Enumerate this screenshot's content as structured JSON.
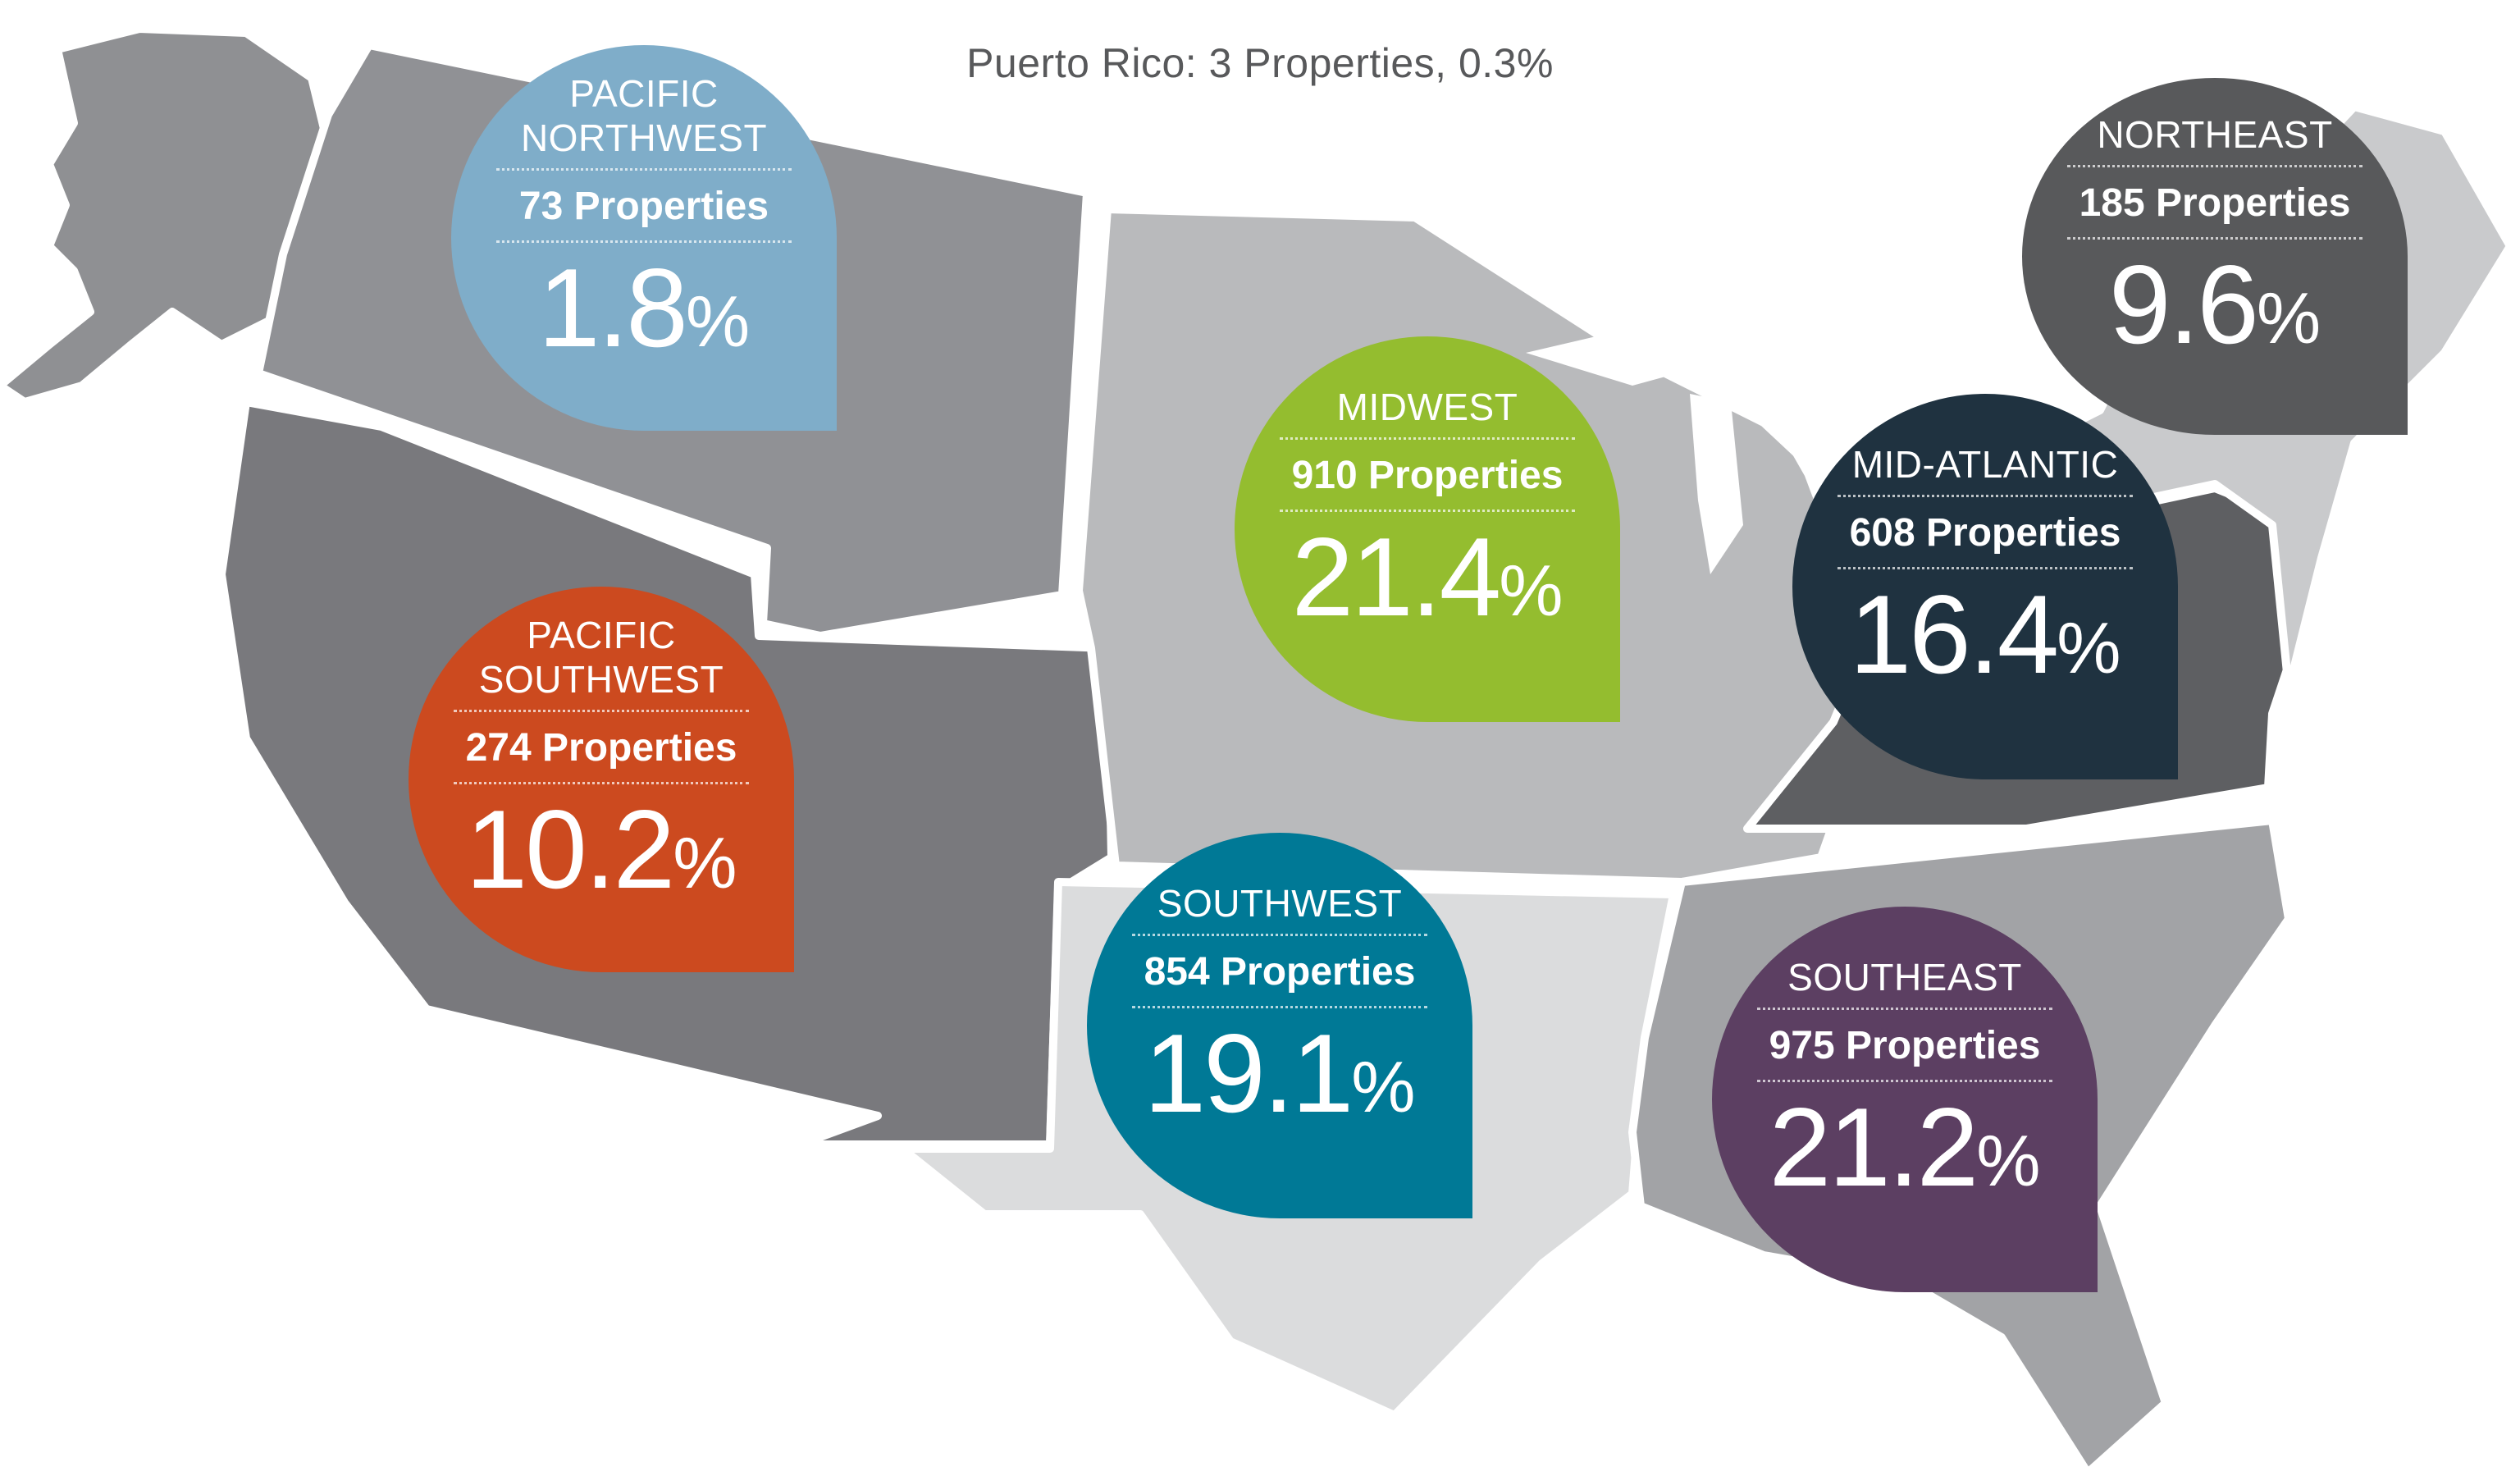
{
  "caption": "Puerto Rico: 3 Properties, 0.3%",
  "regions": [
    {
      "id": "pacific-northwest",
      "name": "PACIFIC NORTHWEST",
      "properties": "73 Properties",
      "percent": "1.8",
      "percent_sign": "%",
      "color": "#7fadc9"
    },
    {
      "id": "pacific-southwest",
      "name": "PACIFIC SOUTHWEST",
      "properties": "274 Properties",
      "percent": "10.2",
      "percent_sign": "%",
      "color": "#cc4a1f"
    },
    {
      "id": "midwest",
      "name": "MIDWEST",
      "properties": "910 Properties",
      "percent": "21.4",
      "percent_sign": "%",
      "color": "#94bd2f"
    },
    {
      "id": "southwest",
      "name": "SOUTHWEST",
      "properties": "854 Properties",
      "percent": "19.1",
      "percent_sign": "%",
      "color": "#007996"
    },
    {
      "id": "northeast",
      "name": "NORTHEAST",
      "properties": "185 Properties",
      "percent": "9.6",
      "percent_sign": "%",
      "color": "#58595b"
    },
    {
      "id": "mid-atlantic",
      "name": "MID-ATLANTIC",
      "properties": "608 Properties",
      "percent": "16.4",
      "percent_sign": "%",
      "color": "#1f3240"
    },
    {
      "id": "southeast",
      "name": "SOUTHEAST",
      "properties": "975 Properties",
      "percent": "21.2",
      "percent_sign": "%",
      "color": "#5c3f62"
    }
  ],
  "map_colors": {
    "alaska": "#8f9093",
    "northwest": "#909195",
    "far_west": "#79797d",
    "midwest": "#b9babc",
    "southwest": "#dbdcdd",
    "southeast": "#a2a3a6",
    "mid_atlantic": "#5e5f62",
    "northeast": "#c9cacc",
    "border": "#ffffff"
  }
}
